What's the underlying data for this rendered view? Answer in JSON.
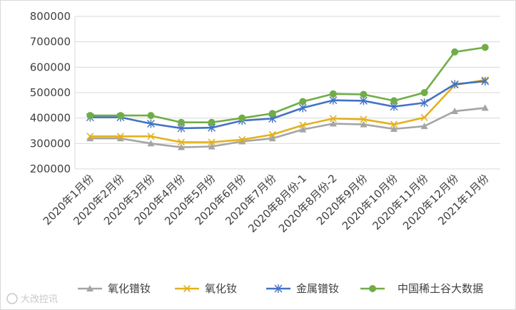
{
  "chart_data": {
    "type": "line",
    "title": "",
    "xlabel": "",
    "ylabel": "",
    "ylim": [
      200000,
      800000
    ],
    "yticks": [
      200000,
      300000,
      400000,
      500000,
      600000,
      700000,
      800000
    ],
    "ytick_labels": [
      "200000",
      "300000",
      "400000",
      "500000",
      "600000",
      "700000",
      "800000"
    ],
    "grid": true,
    "legend_position": "bottom",
    "categories": [
      "2020年1月份",
      "2020年2月份",
      "2020年3月份",
      "2020年4月份",
      "2020年5月份",
      "2020年6月份",
      "2020年7月份",
      "2020年8月份-1",
      "2020年8月份-2",
      "2020年9月份",
      "2020年10月份",
      "2020年11月份",
      "2020年12月份",
      "2021年1月份"
    ],
    "series": [
      {
        "name": "氧化镨钕",
        "color": "#a5a5a5",
        "marker": "triangle",
        "values": [
          320000,
          320000,
          300000,
          285000,
          288000,
          308000,
          320000,
          355000,
          378000,
          375000,
          357000,
          368000,
          427000,
          440000
        ]
      },
      {
        "name": "氧化钕",
        "color": "#e3b11d",
        "marker": "x",
        "values": [
          328000,
          328000,
          328000,
          305000,
          305000,
          315000,
          335000,
          372000,
          398000,
          395000,
          375000,
          402000,
          530000,
          550000
        ]
      },
      {
        "name": "金属镨钕",
        "color": "#4472c4",
        "marker": "star",
        "values": [
          403000,
          403000,
          378000,
          360000,
          362000,
          390000,
          398000,
          440000,
          470000,
          468000,
          445000,
          460000,
          533000,
          545000
        ]
      },
      {
        "name": "",
        "color": "#70ad47",
        "marker": "circle",
        "values": [
          410000,
          410000,
          410000,
          383000,
          383000,
          400000,
          418000,
          465000,
          495000,
          493000,
          468000,
          500000,
          660000,
          678000
        ]
      }
    ]
  },
  "watermark": {
    "left": "大改控讯",
    "right": "中国稀土谷大数据"
  }
}
